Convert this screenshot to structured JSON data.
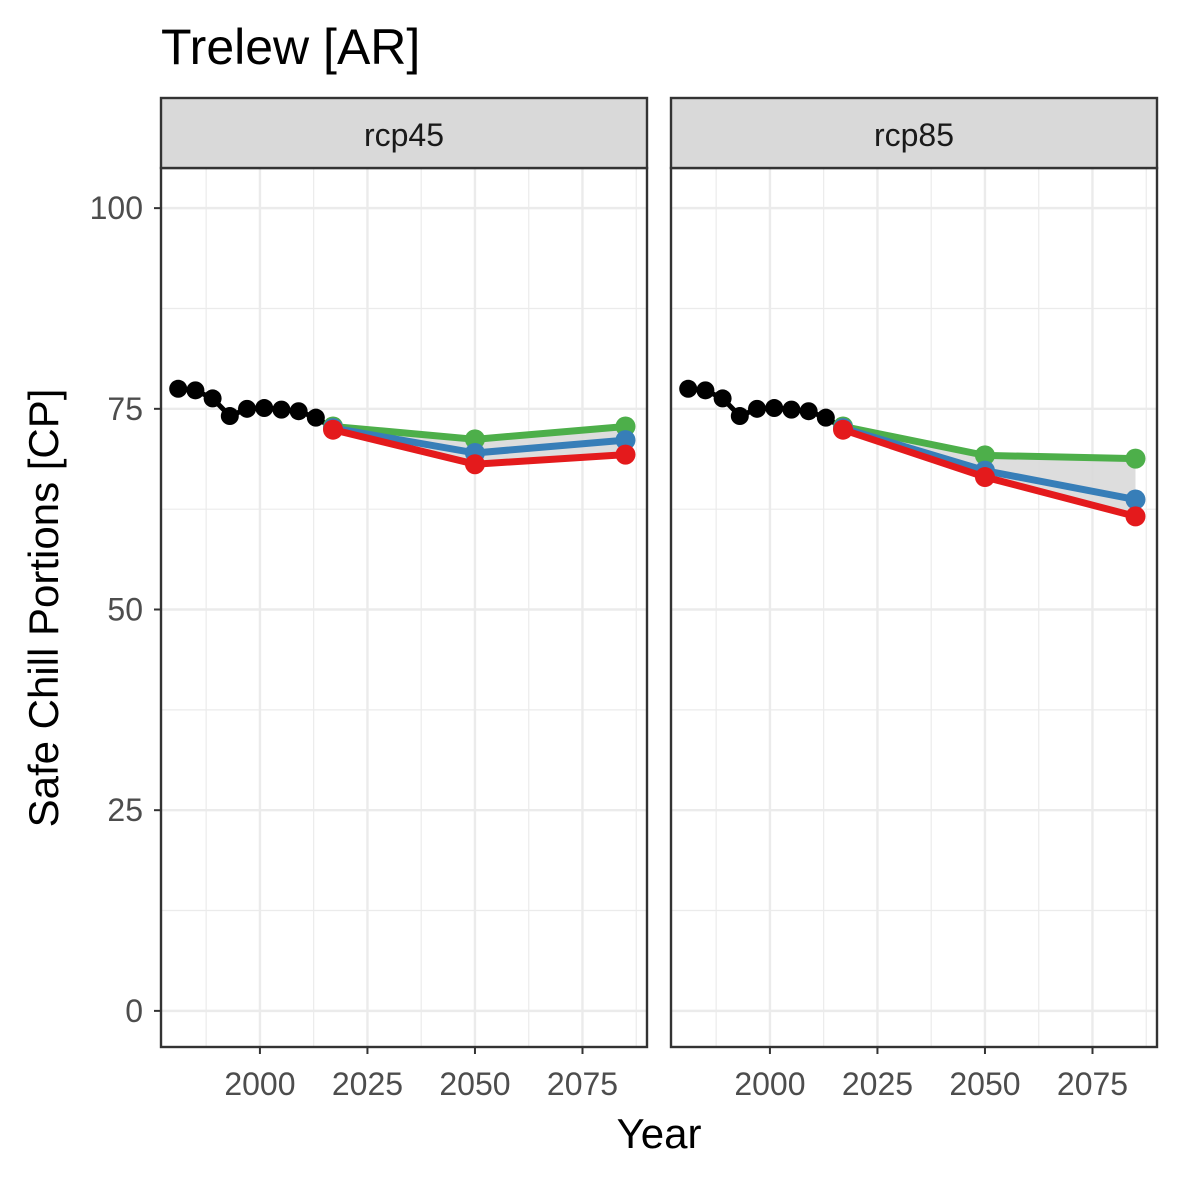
{
  "chart_data": {
    "type": "line",
    "title": "Trelew [AR]",
    "xlabel": "Year",
    "ylabel": "Safe Chill Portions [CP]",
    "xlim": [
      1977,
      2090
    ],
    "ylim": [
      -4.5,
      105
    ],
    "x_ticks": [
      2000,
      2025,
      2050,
      2075
    ],
    "x_tick_labels": [
      "2000",
      "2025",
      "2050",
      "2075"
    ],
    "y_ticks": [
      0,
      25,
      50,
      75,
      100
    ],
    "y_tick_labels": [
      "0",
      "25",
      "50",
      "75",
      "100"
    ],
    "grid": true,
    "legend": "none",
    "colors": {
      "historic": "#000000",
      "low": "#e41a1c",
      "mid": "#377eb8",
      "high": "#4daf4a",
      "ribbon": "#d9d9d9",
      "strip_fill": "#d9d9d9",
      "frame": "#333333",
      "grid": "#ebebeb"
    },
    "panels": [
      {
        "label": "rcp45",
        "historic": {
          "x": [
            1981,
            1985,
            1989,
            1993,
            1997,
            2001,
            2005,
            2009,
            2013,
            2017
          ],
          "y": [
            77.5,
            77.3,
            76.3,
            74.1,
            75.0,
            75.1,
            74.9,
            74.7,
            73.9,
            72.6
          ]
        },
        "future": {
          "x": [
            2017,
            2050,
            2085
          ],
          "low": [
            72.4,
            68.1,
            69.3
          ],
          "mid": [
            72.6,
            69.5,
            71.1
          ],
          "high": [
            72.8,
            71.2,
            72.8
          ]
        }
      },
      {
        "label": "rcp85",
        "historic": {
          "x": [
            1981,
            1985,
            1989,
            1993,
            1997,
            2001,
            2005,
            2009,
            2013,
            2017
          ],
          "y": [
            77.5,
            77.3,
            76.3,
            74.1,
            75.0,
            75.1,
            74.9,
            74.7,
            73.9,
            72.6
          ]
        },
        "future": {
          "x": [
            2017,
            2050,
            2085
          ],
          "low": [
            72.4,
            66.5,
            61.6
          ],
          "mid": [
            72.6,
            67.3,
            63.7
          ],
          "high": [
            72.8,
            69.2,
            68.8
          ]
        }
      }
    ]
  }
}
